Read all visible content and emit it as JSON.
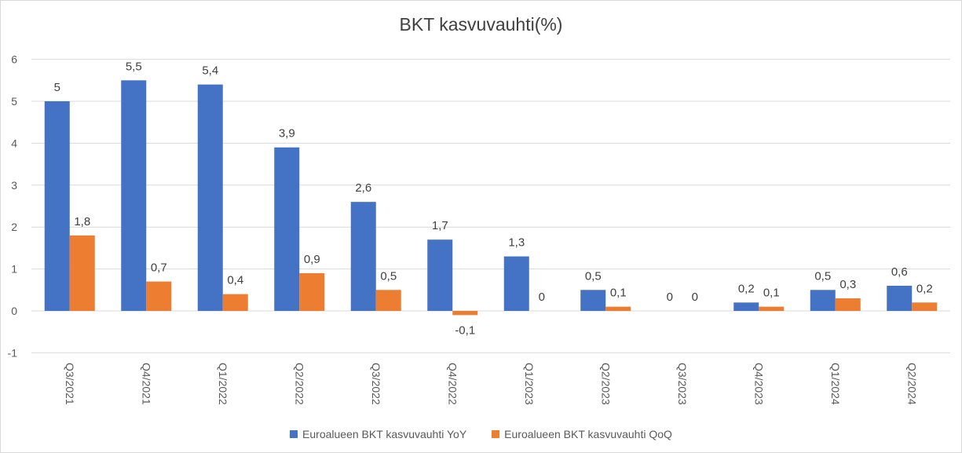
{
  "chart_data": {
    "type": "bar",
    "title": "BKT kasvuvauhti(%)",
    "xlabel": "",
    "ylabel": "",
    "ylim": [
      -1,
      6
    ],
    "yticks": [
      -1,
      0,
      1,
      2,
      3,
      4,
      5,
      6
    ],
    "grid": true,
    "legend_position": "bottom",
    "categories": [
      "Q3/2021",
      "Q4/2021",
      "Q1/2022",
      "Q2/2022",
      "Q3/2022",
      "Q4/2022",
      "Q1/2023",
      "Q2/2023",
      "Q3/2023",
      "Q4/2023",
      "Q1/2024",
      "Q2/2024"
    ],
    "series": [
      {
        "name": "Euroalueen BKT kasvuvauhti YoY",
        "color": "#4472c4",
        "values": [
          5,
          5.5,
          5.4,
          3.9,
          2.6,
          1.7,
          1.3,
          0.5,
          0,
          0.2,
          0.5,
          0.6
        ],
        "labels": [
          "5",
          "5,5",
          "5,4",
          "3,9",
          "2,6",
          "1,7",
          "1,3",
          "0,5",
          "0",
          "0,2",
          "0,5",
          "0,6"
        ]
      },
      {
        "name": "Euroalueen BKT kasvuvauhti QoQ",
        "color": "#ed7d31",
        "values": [
          1.8,
          0.7,
          0.4,
          0.9,
          0.5,
          -0.1,
          0,
          0.1,
          0,
          0.1,
          0.3,
          0.2
        ],
        "labels": [
          "1,8",
          "0,7",
          "0,4",
          "0,9",
          "0,5",
          "-0,1",
          "0",
          "0,1",
          "0",
          "0,1",
          "0,3",
          "0,2"
        ]
      }
    ]
  }
}
